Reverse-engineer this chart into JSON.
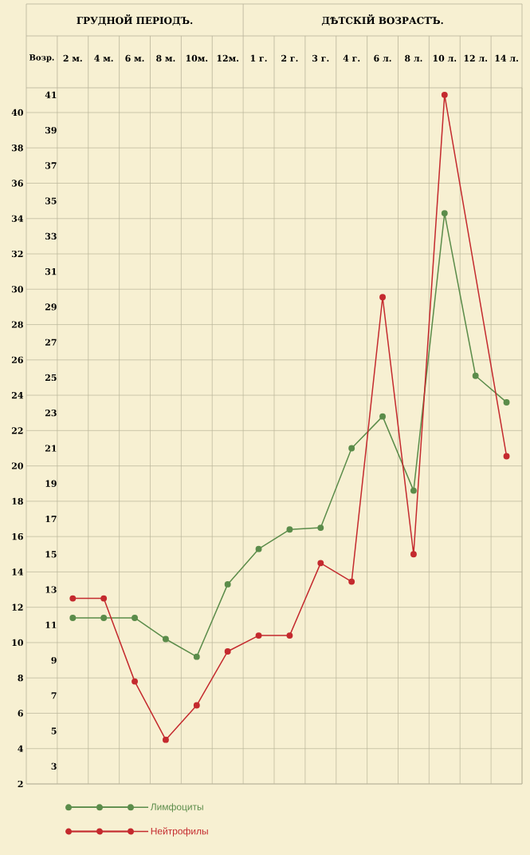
{
  "chart_data": {
    "type": "line",
    "annotations": [
      "ГРУДНОЙ ПЕРІОДЪ.",
      "ДѢТСКІЙ ВОЗРАСТЪ."
    ],
    "xlabel": "Возр.",
    "categories": [
      "2 м.",
      "4 м.",
      "6 м.",
      "8 м.",
      "10м.",
      "12м.",
      "1 г.",
      "2 г.",
      "3 г.",
      "4 г.",
      "6 л.",
      "8 л.",
      "10 л.",
      "12 л.",
      "14 л."
    ],
    "series": [
      {
        "name": "Лимфоциты",
        "color": "#5b8c4a",
        "values": [
          11.4,
          11.4,
          11.4,
          10.2,
          9.2,
          13.3,
          15.3,
          16.4,
          16.5,
          21.0,
          22.8,
          18.6,
          34.3,
          25.1,
          23.6
        ]
      },
      {
        "name": "Нейтрофилы",
        "color": "#c42a2e",
        "values": [
          12.5,
          12.5,
          7.8,
          4.5,
          6.45,
          9.5,
          10.4,
          10.4,
          14.5,
          13.45,
          29.55,
          15.0,
          41.0,
          null,
          20.55
        ]
      }
    ],
    "ylim": [
      2,
      41.4
    ],
    "yticks": [
      2,
      4,
      6,
      8,
      10,
      12,
      14,
      16,
      18,
      20,
      22,
      24,
      26,
      28,
      30,
      32,
      34,
      36,
      38,
      40
    ],
    "y2lim": [
      2,
      41.4
    ],
    "y2ticks": [
      3,
      5,
      7,
      9,
      11,
      13,
      15,
      17,
      19,
      21,
      23,
      25,
      27,
      29,
      31,
      33,
      35,
      37,
      39,
      41
    ],
    "grid": true,
    "legend": "bottom left",
    "marker": "circle",
    "line_style": "solid"
  }
}
